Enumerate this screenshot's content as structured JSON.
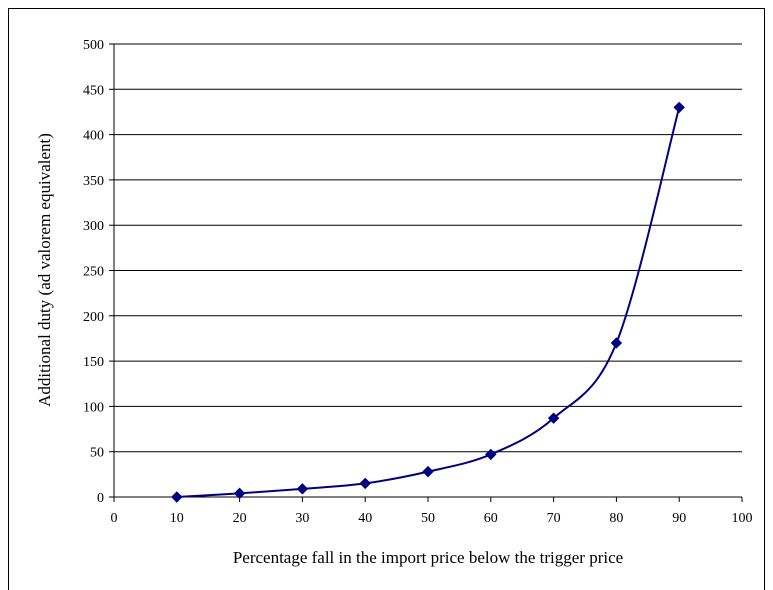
{
  "chart_data": {
    "type": "line",
    "x_label": "Percentage fall in the import price below the trigger price",
    "y_label": "Additional duty (ad valorem equivalent)",
    "x": [
      10,
      20,
      30,
      40,
      50,
      60,
      70,
      80,
      90
    ],
    "series": [
      {
        "color": "#000080",
        "values": [
          0,
          4,
          9,
          15,
          28,
          47,
          87,
          170,
          430
        ]
      }
    ],
    "xlim": [
      0,
      100
    ],
    "xticks": [
      0,
      10,
      20,
      30,
      40,
      50,
      60,
      70,
      80,
      90,
      100
    ],
    "ylim": [
      0,
      500
    ],
    "yticks": [
      0,
      50,
      100,
      150,
      200,
      250,
      300,
      350,
      400,
      450,
      500
    ],
    "grid": true,
    "smooth": true,
    "marker": "diamond"
  }
}
